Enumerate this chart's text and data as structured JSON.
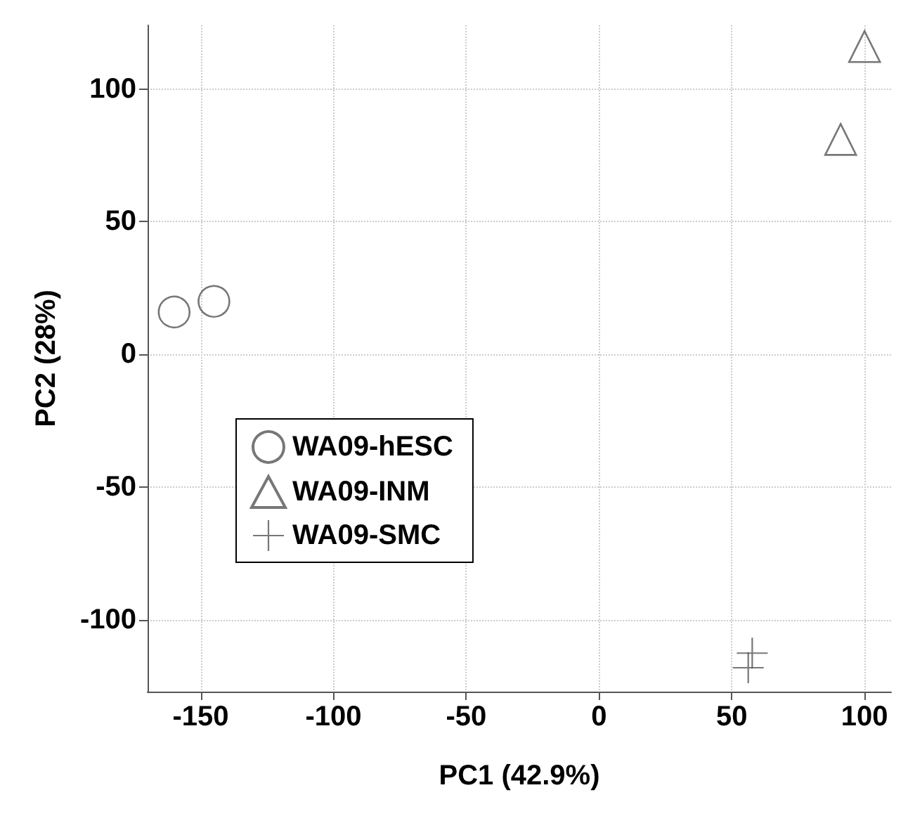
{
  "chart_data": {
    "type": "scatter",
    "xlabel": "PC1 (42.9%)",
    "ylabel": "PC2 (28%)",
    "xlim": [
      -170,
      110
    ],
    "ylim": [
      -127,
      124
    ],
    "xticks": [
      -150,
      -100,
      -50,
      0,
      50,
      100
    ],
    "yticks": [
      -100,
      -50,
      0,
      50,
      100
    ],
    "grid": true,
    "legend": "left",
    "series": [
      {
        "name": "WA09-hESC",
        "color": "#555555",
        "marker": "circle",
        "x": [
          -160,
          -145
        ],
        "values": [
          16,
          20
        ]
      },
      {
        "name": "WA09-INM",
        "color": "#555555",
        "marker": "triangle",
        "x": [
          91,
          100
        ],
        "values": [
          81,
          116
        ]
      },
      {
        "name": "WA09-SMC",
        "color": "#555555",
        "marker": "cross",
        "x": [
          57.7,
          56.2
        ],
        "values": [
          -112.5,
          -118
        ]
      }
    ]
  }
}
